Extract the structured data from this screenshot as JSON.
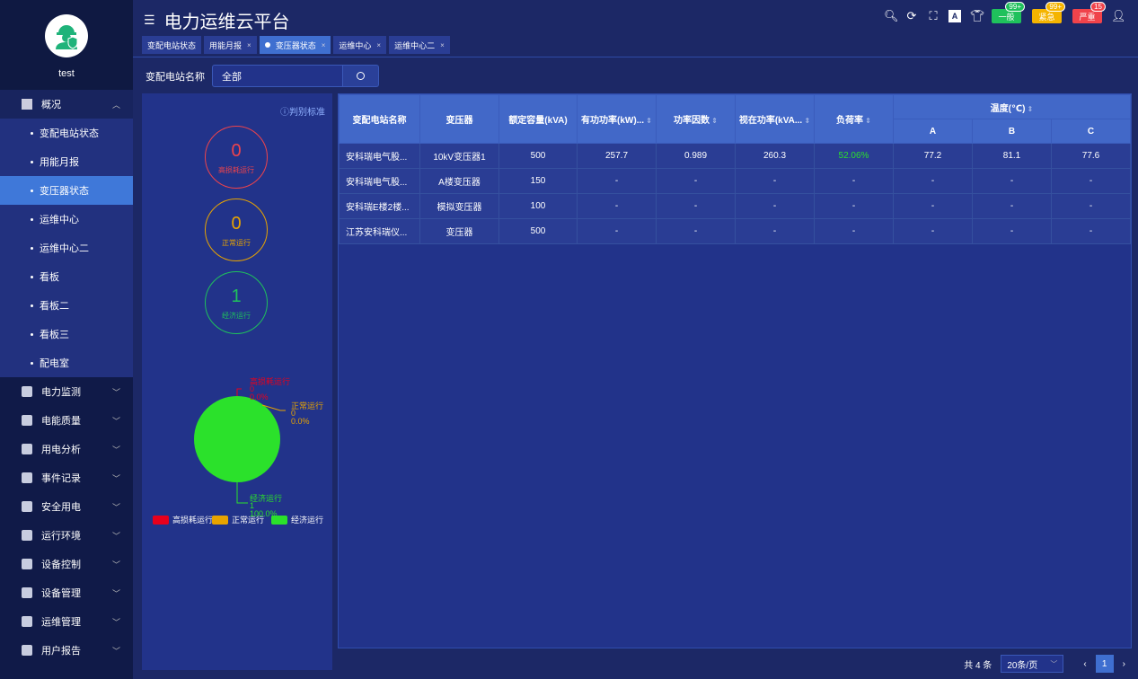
{
  "user": {
    "name": "test"
  },
  "sidebar": {
    "open_group": {
      "label": "概况",
      "icon": "monitor-icon"
    },
    "sub_items": [
      "变配电站状态",
      "用能月报",
      "变压器状态",
      "运维中心",
      "运维中心二",
      "看板",
      "看板二",
      "看板三",
      "配电室"
    ],
    "active_sub": "变压器状态",
    "groups": [
      {
        "label": "电力监测",
        "icon": "lightning-icon"
      },
      {
        "label": "电能质量",
        "icon": "quality-icon"
      },
      {
        "label": "用电分析",
        "icon": "bar-chart-icon"
      },
      {
        "label": "事件记录",
        "icon": "record-icon"
      },
      {
        "label": "安全用电",
        "icon": "alarm-light-icon"
      },
      {
        "label": "运行环境",
        "icon": "camera-icon"
      },
      {
        "label": "设备控制",
        "icon": "control-icon"
      },
      {
        "label": "设备管理",
        "icon": "device-icon"
      },
      {
        "label": "运维管理",
        "icon": "grid-icon"
      },
      {
        "label": "用户报告",
        "icon": "edit-icon"
      }
    ]
  },
  "header": {
    "title": "电力运维云平台",
    "tabs": [
      {
        "label": "变配电站状态",
        "closable": false
      },
      {
        "label": "用能月报",
        "closable": true
      },
      {
        "label": "变压器状态",
        "closable": true,
        "active": true
      },
      {
        "label": "运维中心",
        "closable": true
      },
      {
        "label": "运维中心二",
        "closable": true
      }
    ],
    "alarms": [
      {
        "label": "一般",
        "count": "99+",
        "color": "#1fc15c"
      },
      {
        "label": "紧急",
        "count": "99+",
        "color": "#f5b400"
      },
      {
        "label": "严重",
        "count": "15",
        "color": "#f0434b"
      }
    ]
  },
  "filter": {
    "label": "变配电站名称",
    "value": "全部"
  },
  "summary": {
    "criteria_label": "判别标准",
    "items": [
      {
        "count": "0",
        "label": "高损耗运行",
        "color": "#f0434b"
      },
      {
        "count": "0",
        "label": "正常运行",
        "color": "#e8a400"
      },
      {
        "count": "1",
        "label": "经济运行",
        "color": "#1fc15c"
      }
    ]
  },
  "chart_data": {
    "type": "pie",
    "slices": [
      {
        "name": "高损耗运行",
        "value": 0,
        "percent": "0.0%",
        "color": "#e8001c"
      },
      {
        "name": "正常运行",
        "value": 0,
        "percent": "0.0%",
        "color": "#e8a400"
      },
      {
        "name": "经济运行",
        "value": 1,
        "percent": "100.0%",
        "color": "#2be12b"
      }
    ],
    "legend": "bottom"
  },
  "table": {
    "columns": [
      "变配电站名称",
      "变压器",
      "额定容量(kVA)",
      "有功功率(kW)...",
      "功率因数",
      "视在功率(kVA...",
      "负荷率",
      "温度(℃)"
    ],
    "temp_sub": [
      "A",
      "B",
      "C"
    ],
    "rows": [
      [
        "安科瑞电气股...",
        "10kV变压器1",
        "500",
        "257.7",
        "0.989",
        "260.3",
        "52.06%",
        "77.2",
        "81.1",
        "77.6"
      ],
      [
        "安科瑞电气股...",
        "A楼变压器",
        "150",
        "-",
        "-",
        "-",
        "-",
        "-",
        "-",
        "-"
      ],
      [
        "安科瑞E楼2楼...",
        "模拟变压器",
        "100",
        "-",
        "-",
        "-",
        "-",
        "-",
        "-",
        "-"
      ],
      [
        "江苏安科瑞仪...",
        "变压器",
        "500",
        "-",
        "-",
        "-",
        "-",
        "-",
        "-",
        "-"
      ]
    ],
    "load_rate_color": "#2be12b"
  },
  "pagination": {
    "total": "共 4 条",
    "page_size": "20条/页",
    "current": "1"
  }
}
